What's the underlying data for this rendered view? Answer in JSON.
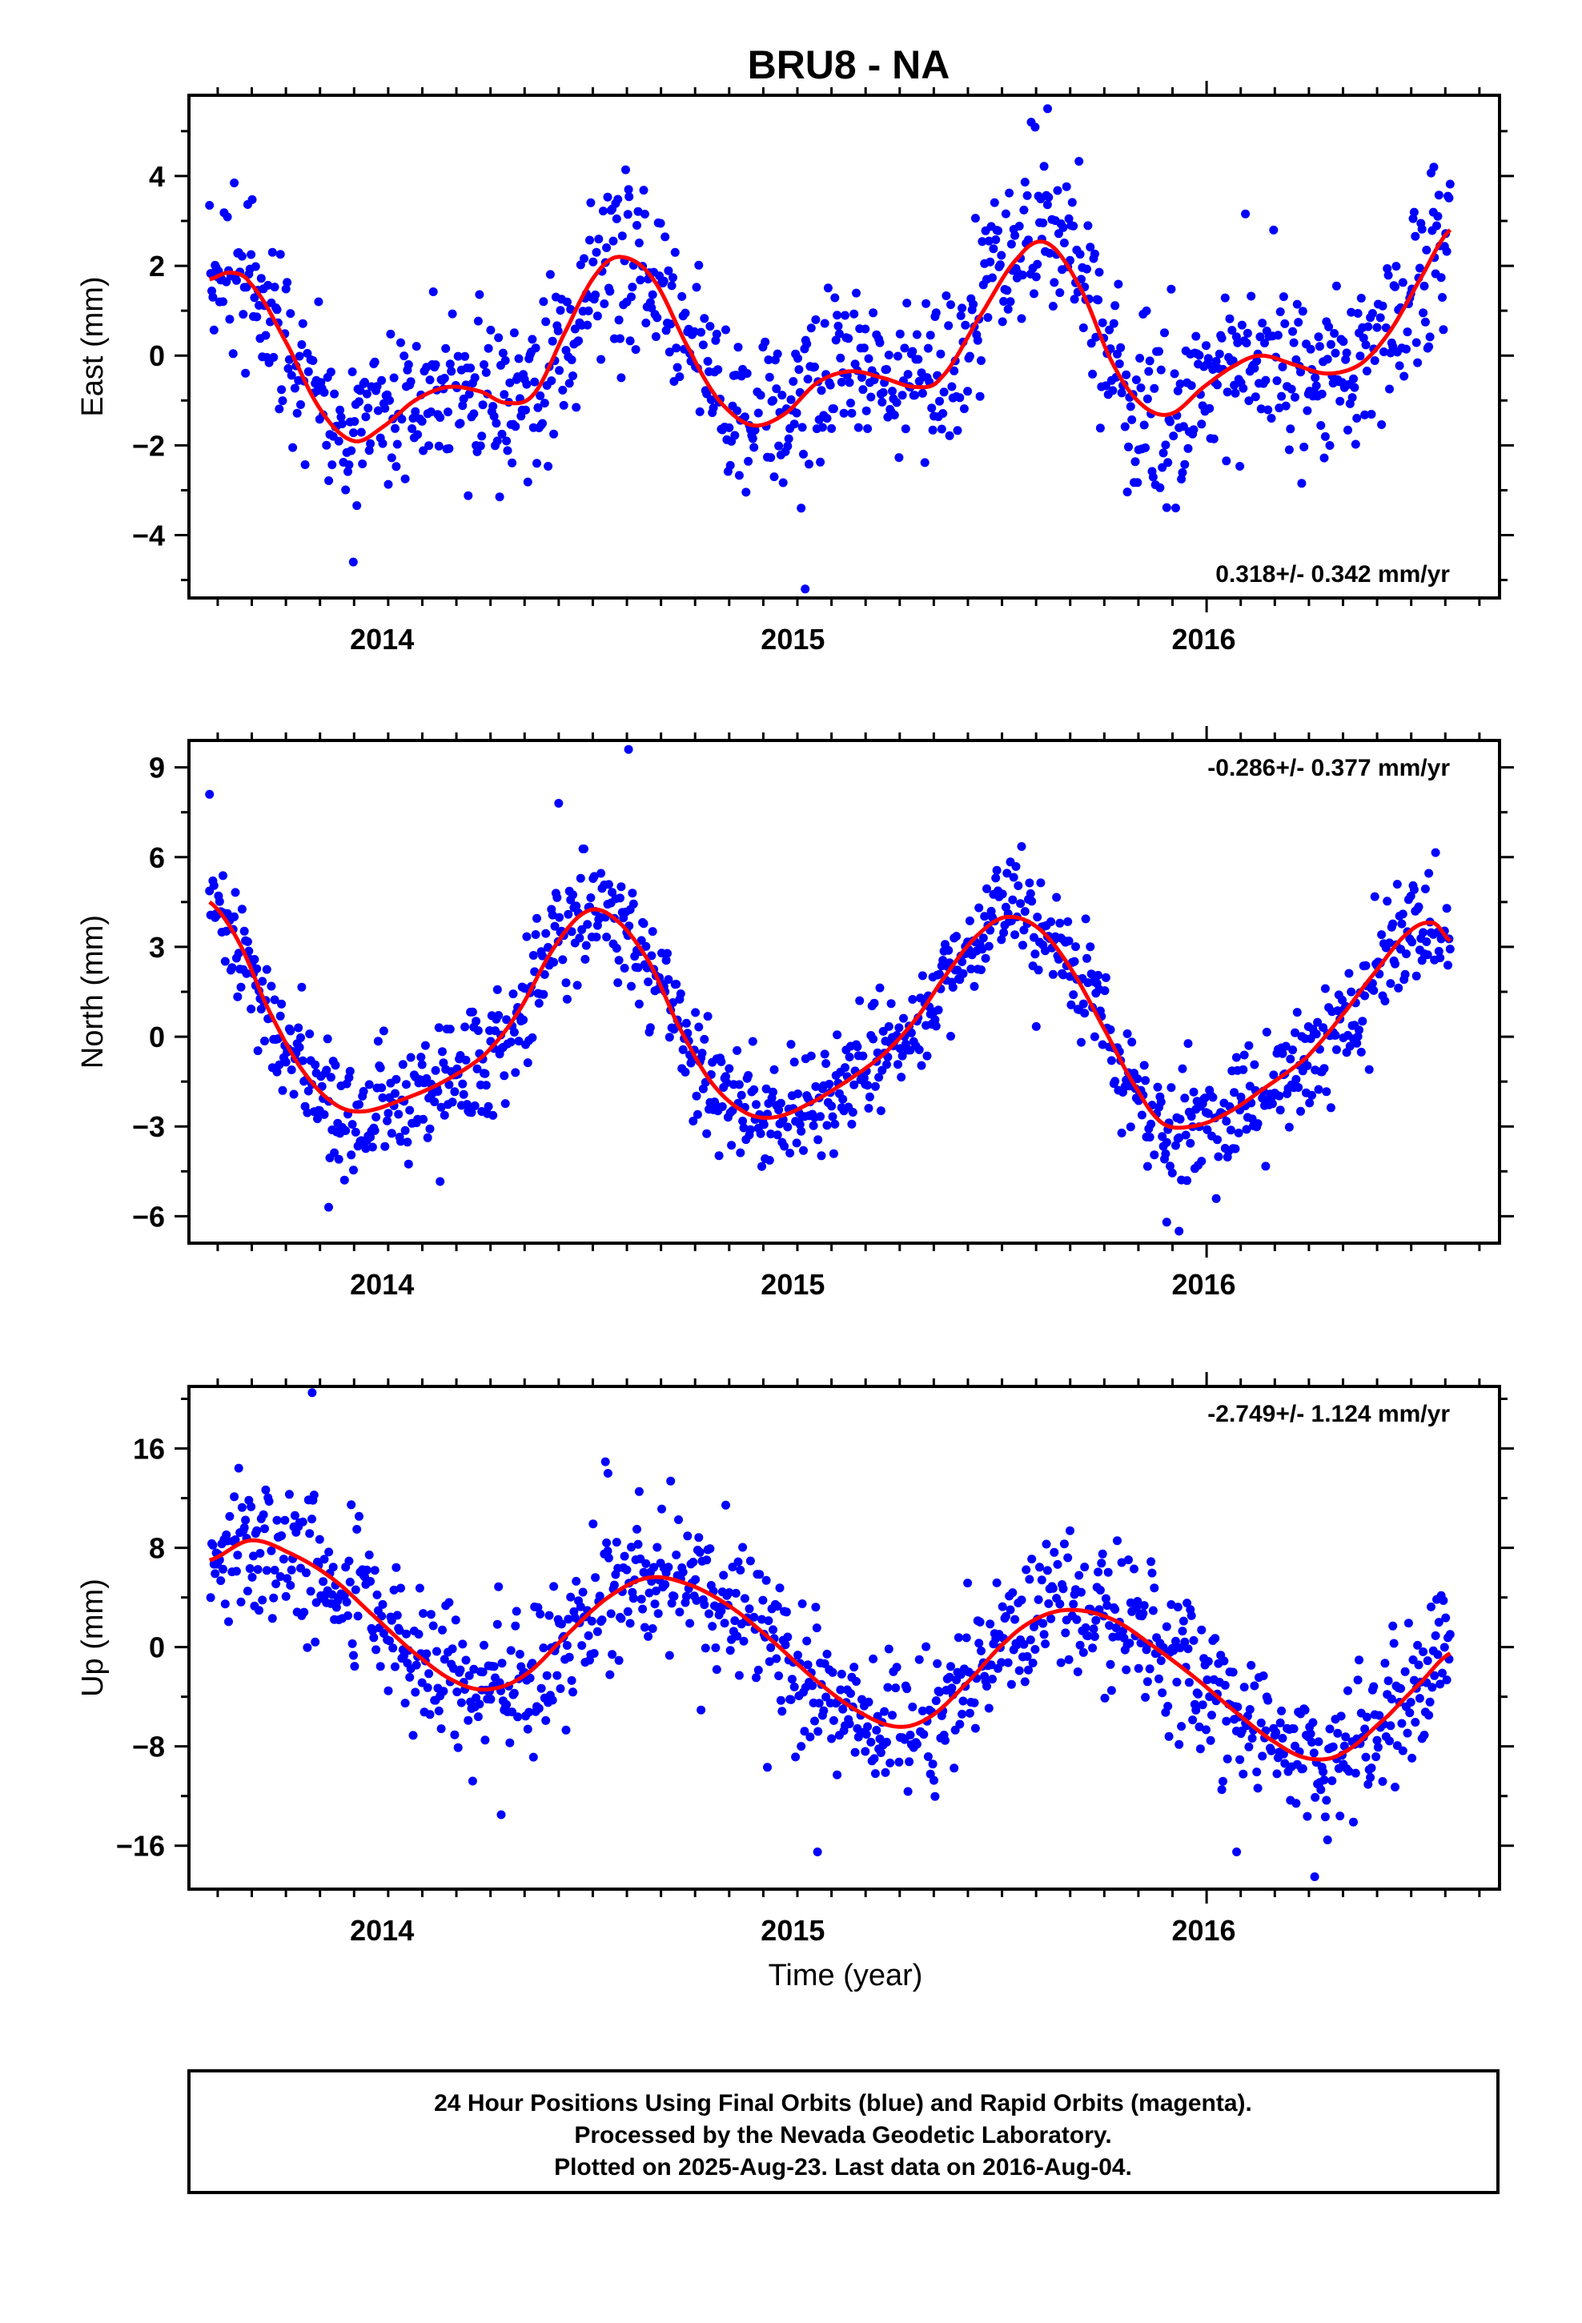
{
  "title": "BRU8 - NA",
  "time_label": "Time (year)",
  "footer": {
    "line1": "24 Hour Positions Using Final Orbits (blue) and Rapid Orbits (magenta).",
    "line2": "Processed by the Nevada Geodetic Laboratory.",
    "line3": "Plotted on 2025-Aug-23. Last data on 2016-Aug-04."
  },
  "colors": {
    "points": "#0000ff",
    "model": "#ff0000",
    "axis": "#000000"
  },
  "chart_data": [
    {
      "type": "scatter",
      "ylabel": "East (mm)",
      "rate": "0.318+/- 0.342 mm/yr",
      "rate_position": "bottom-right",
      "xlim": [
        2013.53,
        2016.72
      ],
      "ylim": [
        -5.4,
        5.8
      ],
      "xticks": [
        2014,
        2015,
        2016
      ],
      "yticks": [
        -4,
        -2,
        0,
        2,
        4
      ],
      "grid": false,
      "model_knots": [
        [
          2013.58,
          1.7
        ],
        [
          2013.63,
          1.85
        ],
        [
          2013.68,
          1.6
        ],
        [
          2013.76,
          0.4
        ],
        [
          2013.85,
          -1.2
        ],
        [
          2013.93,
          -1.9
        ],
        [
          2014.0,
          -1.6
        ],
        [
          2014.08,
          -1.0
        ],
        [
          2014.16,
          -0.7
        ],
        [
          2014.24,
          -0.8
        ],
        [
          2014.3,
          -1.05
        ],
        [
          2014.37,
          -0.85
        ],
        [
          2014.45,
          0.6
        ],
        [
          2014.52,
          1.8
        ],
        [
          2014.58,
          2.2
        ],
        [
          2014.66,
          1.7
        ],
        [
          2014.75,
          0.1
        ],
        [
          2014.82,
          -1.0
        ],
        [
          2014.9,
          -1.55
        ],
        [
          2014.98,
          -1.3
        ],
        [
          2015.06,
          -0.6
        ],
        [
          2015.14,
          -0.35
        ],
        [
          2015.22,
          -0.5
        ],
        [
          2015.3,
          -0.7
        ],
        [
          2015.36,
          -0.5
        ],
        [
          2015.45,
          0.8
        ],
        [
          2015.55,
          2.2
        ],
        [
          2015.62,
          2.5
        ],
        [
          2015.7,
          1.5
        ],
        [
          2015.78,
          -0.2
        ],
        [
          2015.85,
          -1.1
        ],
        [
          2015.92,
          -1.3
        ],
        [
          2016.0,
          -0.7
        ],
        [
          2016.08,
          -0.2
        ],
        [
          2016.14,
          0.0
        ],
        [
          2016.22,
          -0.2
        ],
        [
          2016.3,
          -0.4
        ],
        [
          2016.38,
          -0.2
        ],
        [
          2016.45,
          0.5
        ],
        [
          2016.52,
          1.6
        ],
        [
          2016.6,
          2.8
        ]
      ],
      "scatter_sd": 0.95,
      "outliers": [
        [
          2015.03,
          -5.2
        ],
        [
          2015.62,
          5.5
        ],
        [
          2013.93,
          -4.6
        ],
        [
          2014.6,
          3.7
        ],
        [
          2015.58,
          5.2
        ],
        [
          2016.56,
          4.2
        ]
      ]
    },
    {
      "type": "scatter",
      "ylabel": "North (mm)",
      "rate": "-0.286+/- 0.377 mm/yr",
      "rate_position": "top-right",
      "xlim": [
        2013.53,
        2016.72
      ],
      "ylim": [
        -6.9,
        9.9
      ],
      "xticks": [
        2014,
        2015,
        2016
      ],
      "yticks": [
        -6,
        -3,
        0,
        3,
        6,
        9
      ],
      "grid": false,
      "model_knots": [
        [
          2013.58,
          4.5
        ],
        [
          2013.65,
          3.2
        ],
        [
          2013.72,
          1.0
        ],
        [
          2013.8,
          -1.0
        ],
        [
          2013.88,
          -2.2
        ],
        [
          2013.95,
          -2.5
        ],
        [
          2014.05,
          -2.1
        ],
        [
          2014.15,
          -1.5
        ],
        [
          2014.25,
          -0.6
        ],
        [
          2014.33,
          0.8
        ],
        [
          2014.42,
          3.0
        ],
        [
          2014.5,
          4.2
        ],
        [
          2014.57,
          3.9
        ],
        [
          2014.65,
          2.5
        ],
        [
          2014.72,
          0.4
        ],
        [
          2014.8,
          -1.5
        ],
        [
          2014.88,
          -2.5
        ],
        [
          2014.95,
          -2.7
        ],
        [
          2015.03,
          -2.3
        ],
        [
          2015.13,
          -1.5
        ],
        [
          2015.22,
          -0.6
        ],
        [
          2015.3,
          0.6
        ],
        [
          2015.38,
          2.2
        ],
        [
          2015.45,
          3.4
        ],
        [
          2015.52,
          4.0
        ],
        [
          2015.6,
          3.6
        ],
        [
          2015.68,
          2.2
        ],
        [
          2015.76,
          0.2
        ],
        [
          2015.84,
          -1.8
        ],
        [
          2015.9,
          -2.9
        ],
        [
          2015.97,
          -3.0
        ],
        [
          2016.05,
          -2.6
        ],
        [
          2016.15,
          -1.7
        ],
        [
          2016.25,
          -0.7
        ],
        [
          2016.33,
          0.6
        ],
        [
          2016.42,
          2.2
        ],
        [
          2016.5,
          3.5
        ],
        [
          2016.56,
          3.8
        ],
        [
          2016.6,
          3.2
        ]
      ],
      "scatter_sd": 0.95,
      "outliers": [
        [
          2013.58,
          8.1
        ],
        [
          2014.43,
          7.8
        ],
        [
          2014.6,
          9.6
        ],
        [
          2013.87,
          -5.7
        ],
        [
          2015.94,
          -6.5
        ],
        [
          2015.91,
          -6.2
        ]
      ]
    },
    {
      "type": "scatter",
      "ylabel": "Up (mm)",
      "rate": "-2.749+/- 1.124 mm/yr",
      "rate_position": "top-right",
      "xlim": [
        2013.53,
        2016.72
      ],
      "ylim": [
        -19.5,
        21.0
      ],
      "xticks": [
        2014,
        2015,
        2016
      ],
      "yticks": [
        -16,
        -8,
        0,
        8,
        16
      ],
      "grid": false,
      "model_knots": [
        [
          2013.58,
          7.0
        ],
        [
          2013.68,
          8.6
        ],
        [
          2013.78,
          7.5
        ],
        [
          2013.88,
          5.5
        ],
        [
          2013.98,
          2.5
        ],
        [
          2014.08,
          -0.5
        ],
        [
          2014.18,
          -2.8
        ],
        [
          2014.26,
          -3.4
        ],
        [
          2014.35,
          -2.2
        ],
        [
          2014.45,
          1.0
        ],
        [
          2014.55,
          4.0
        ],
        [
          2014.65,
          5.6
        ],
        [
          2014.75,
          5.0
        ],
        [
          2014.85,
          3.2
        ],
        [
          2014.95,
          0.5
        ],
        [
          2015.05,
          -2.5
        ],
        [
          2015.15,
          -5.0
        ],
        [
          2015.25,
          -6.4
        ],
        [
          2015.33,
          -5.7
        ],
        [
          2015.42,
          -3.0
        ],
        [
          2015.52,
          0.5
        ],
        [
          2015.6,
          2.4
        ],
        [
          2015.68,
          3.0
        ],
        [
          2015.78,
          2.2
        ],
        [
          2015.88,
          0.0
        ],
        [
          2015.98,
          -2.5
        ],
        [
          2016.08,
          -5.3
        ],
        [
          2016.18,
          -7.8
        ],
        [
          2016.26,
          -9.0
        ],
        [
          2016.34,
          -8.5
        ],
        [
          2016.45,
          -5.5
        ],
        [
          2016.53,
          -2.8
        ],
        [
          2016.6,
          -0.5
        ]
      ],
      "scatter_sd": 2.9,
      "outliers": [
        [
          2013.83,
          20.5
        ],
        [
          2014.29,
          -13.5
        ],
        [
          2014.55,
          14.0
        ],
        [
          2015.06,
          -16.5
        ],
        [
          2016.27,
          -18.5
        ],
        [
          2016.08,
          -16.5
        ]
      ]
    }
  ]
}
